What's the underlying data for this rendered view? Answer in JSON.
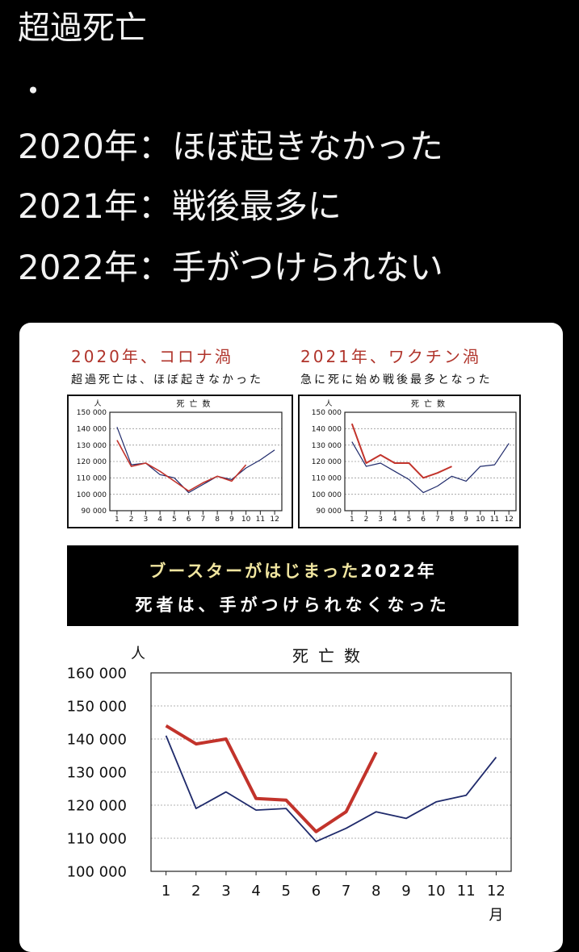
{
  "post": {
    "title": "超過死亡",
    "dot": "・",
    "lines": [
      "2020年：ほぼ起きなかった",
      "2021年：戦後最多に",
      "2022年：手がつけられない"
    ]
  },
  "banner": {
    "line1_highlight": "ブースターがはじまった",
    "line1_rest": "2022年",
    "line2": "死者は、手がつけられなくなった"
  },
  "colors": {
    "red": "#c2332b",
    "navy": "#1f2a6b"
  },
  "chart_data": [
    {
      "type": "line",
      "title": "2020年、コロナ渦",
      "subtitle": "超過死亡は、ほぼ起きなかった",
      "chart_label": "死亡数",
      "ylabel": "人",
      "x": [
        1,
        2,
        3,
        4,
        5,
        6,
        7,
        8,
        9,
        10,
        11,
        12
      ],
      "ylim": [
        90000,
        150000
      ],
      "yticks": [
        90000,
        100000,
        110000,
        120000,
        130000,
        140000,
        150000
      ],
      "ytick_labels": [
        "90 000",
        "100 000",
        "110 000",
        "120 000",
        "130 000",
        "140 000",
        "150 000"
      ],
      "grid": true,
      "series": [
        {
          "color": "#1f2a6b",
          "values": [
            141000,
            118000,
            119000,
            112000,
            110000,
            101000,
            106000,
            111000,
            109000,
            116000,
            121000,
            127000
          ]
        },
        {
          "color": "#c2332b",
          "values": [
            133000,
            117000,
            119000,
            114000,
            108000,
            102000,
            107000,
            111000,
            108000,
            118000,
            null,
            null
          ]
        }
      ]
    },
    {
      "type": "line",
      "title": "2021年、ワクチン渦",
      "subtitle": "急に死に始め戦後最多となった",
      "chart_label": "死亡数",
      "ylabel": "人",
      "x": [
        1,
        2,
        3,
        4,
        5,
        6,
        7,
        8,
        9,
        10,
        11,
        12
      ],
      "ylim": [
        90000,
        150000
      ],
      "yticks": [
        90000,
        100000,
        110000,
        120000,
        130000,
        140000,
        150000
      ],
      "ytick_labels": [
        "90 000",
        "100 000",
        "110 000",
        "120 000",
        "130 000",
        "140 000",
        "150 000"
      ],
      "grid": true,
      "series": [
        {
          "color": "#1f2a6b",
          "values": [
            132000,
            117000,
            119000,
            114000,
            109000,
            101000,
            105000,
            111000,
            108000,
            117000,
            118000,
            131000
          ]
        },
        {
          "color": "#c2332b",
          "values": [
            143000,
            119000,
            124000,
            119000,
            119000,
            110000,
            113000,
            117000,
            null,
            null,
            null,
            null
          ]
        }
      ]
    },
    {
      "type": "line",
      "title": "",
      "chart_label": "死亡数",
      "ylabel": "人",
      "xlabel": "月",
      "x": [
        1,
        2,
        3,
        4,
        5,
        6,
        7,
        8,
        9,
        10,
        11,
        12
      ],
      "ylim": [
        100000,
        160000
      ],
      "yticks": [
        100000,
        110000,
        120000,
        130000,
        140000,
        150000,
        160000
      ],
      "ytick_labels": [
        "100 000",
        "110 000",
        "120 000",
        "130 000",
        "140 000",
        "150 000",
        "160 000"
      ],
      "grid": true,
      "series": [
        {
          "color": "#1f2a6b",
          "values": [
            141000,
            119000,
            124000,
            118500,
            119000,
            109000,
            113000,
            118000,
            116000,
            121000,
            123000,
            134500
          ]
        },
        {
          "color": "#c2332b",
          "values": [
            144000,
            138500,
            140000,
            122000,
            121500,
            112000,
            118000,
            136000,
            null,
            null,
            null,
            null
          ]
        }
      ]
    }
  ]
}
